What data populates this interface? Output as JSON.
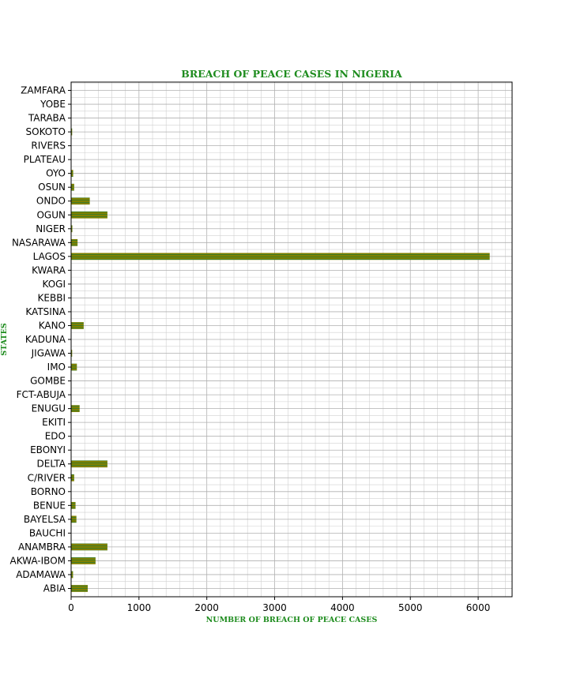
{
  "chart_data": {
    "type": "bar",
    "orientation": "horizontal",
    "title": "BREACH OF PEACE CASES IN NIGERIA",
    "xlabel": "NUMBER OF BREACH OF PEACE CASES",
    "ylabel": "STATES",
    "xlim": [
      0,
      6500
    ],
    "xticks": [
      0,
      1000,
      2000,
      3000,
      4000,
      5000,
      6000
    ],
    "grid": true,
    "legend": "none",
    "bar_color": "#808000",
    "bar_stripe_color": "#2e7d32",
    "categories": [
      "ABIA",
      "ADAMAWA",
      "AKWA-IBOM",
      "ANAMBRA",
      "BAUCHI",
      "BAYELSA",
      "BENUE",
      "BORNO",
      "C/RIVER",
      "DELTA",
      "EBONYI",
      "EDO",
      "EKITI",
      "ENUGU",
      "FCT-ABUJA",
      "GOMBE",
      "IMO",
      "JIGAWA",
      "KADUNA",
      "KANO",
      "KATSINA",
      "KEBBI",
      "KOGI",
      "KWARA",
      "LAGOS",
      "NASARAWA",
      "NIGER",
      "OGUN",
      "ONDO",
      "OSUN",
      "OYO",
      "PLATEAU",
      "RIVERS",
      "SOKOTO",
      "TARABA",
      "YOBE",
      "ZAMFARA"
    ],
    "values": [
      245,
      28,
      360,
      535,
      0,
      78,
      65,
      0,
      45,
      535,
      0,
      0,
      0,
      125,
      0,
      0,
      85,
      15,
      0,
      185,
      0,
      0,
      0,
      0,
      6170,
      95,
      18,
      535,
      275,
      45,
      30,
      0,
      0,
      15,
      0,
      0,
      0
    ]
  }
}
